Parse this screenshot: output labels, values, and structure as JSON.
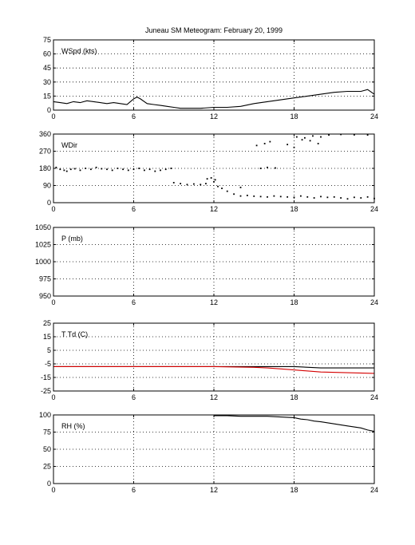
{
  "title": "Juneau SM Meteogram:   February 20, 1999",
  "x_ticks": [
    "0",
    "6",
    "12",
    "18",
    "24"
  ],
  "chart_data": [
    {
      "type": "line",
      "label": "WSpd (kts)",
      "xlim": [
        0,
        24
      ],
      "ylim": [
        0,
        75
      ],
      "y_ticks": [
        0,
        15,
        30,
        45,
        60,
        75
      ],
      "grid": true,
      "series": [
        {
          "color": "#000000",
          "x": [
            0,
            0.5,
            1,
            1.5,
            2,
            2.5,
            3,
            3.5,
            4,
            4.5,
            5,
            5.5,
            6,
            6.25,
            6.5,
            7,
            7.5,
            8,
            8.5,
            9,
            9.5,
            10,
            11,
            12,
            13,
            14,
            15,
            16,
            17,
            18,
            18.5,
            19,
            20,
            21,
            22,
            23,
            23.5,
            24
          ],
          "y": [
            9,
            8,
            7,
            9,
            8,
            10,
            9,
            8,
            7,
            8,
            7,
            6,
            12,
            14,
            12,
            7,
            6,
            5,
            4,
            3,
            2,
            2,
            2,
            3,
            3,
            4,
            7,
            9,
            11,
            13,
            14,
            15,
            17,
            19,
            20,
            20,
            22,
            17
          ]
        }
      ]
    },
    {
      "type": "scatter",
      "label": "WDir",
      "xlim": [
        0,
        24
      ],
      "ylim": [
        0,
        360
      ],
      "y_ticks": [
        0,
        90,
        180,
        270,
        360
      ],
      "grid": true,
      "series": [
        {
          "color": "#000000",
          "x": [
            0.2,
            0.5,
            0.8,
            1.0,
            1.3,
            1.6,
            2.0,
            2.4,
            2.8,
            3.2,
            3.6,
            4.0,
            4.4,
            4.8,
            5.2,
            5.6,
            6.0,
            6.4,
            6.8,
            7.2,
            7.6,
            8.0,
            8.4,
            8.8,
            9.0,
            9.5,
            10.0,
            10.5,
            11.0,
            11.4,
            11.8,
            12.0,
            12.3,
            12.6,
            13.0,
            13.5,
            14.0,
            14.5,
            15.0,
            15.5,
            16.0,
            16.5,
            17.0,
            17.5,
            18.0,
            18.5,
            19.0,
            19.5,
            20.0,
            20.5,
            21.0,
            21.5,
            22.0,
            22.5,
            23.0,
            23.5,
            24.0,
            15.5,
            16.0,
            16.6,
            15.2,
            15.8,
            16.2,
            17.5,
            18.0,
            18.6,
            19.2,
            19.8,
            18.2,
            18.8,
            19.4,
            20.0,
            20.6,
            21.5,
            22.5,
            23.5,
            14.0,
            11.5,
            12.1
          ],
          "y": [
            185,
            175,
            170,
            165,
            175,
            178,
            170,
            180,
            175,
            185,
            178,
            175,
            170,
            180,
            175,
            170,
            175,
            180,
            170,
            175,
            165,
            170,
            175,
            180,
            105,
            100,
            95,
            98,
            95,
            100,
            130,
            110,
            85,
            75,
            60,
            45,
            35,
            38,
            34,
            32,
            30,
            35,
            32,
            30,
            28,
            35,
            30,
            25,
            32,
            28,
            30,
            25,
            20,
            28,
            25,
            30,
            22,
            180,
            185,
            182,
            300,
            310,
            320,
            305,
            290,
            330,
            325,
            310,
            345,
            340,
            350,
            345,
            355,
            358,
            356,
            355,
            80,
            125,
            120
          ]
        }
      ]
    },
    {
      "type": "line",
      "label": "P (mb)",
      "xlim": [
        0,
        24
      ],
      "ylim": [
        950,
        1050
      ],
      "y_ticks": [
        950,
        975,
        1000,
        1025,
        1050
      ],
      "grid": true,
      "series": []
    },
    {
      "type": "line",
      "label": "T Td (C)",
      "xlim": [
        0,
        24
      ],
      "ylim": [
        -25,
        25
      ],
      "y_ticks": [
        -25,
        -15,
        -5,
        5,
        15,
        25
      ],
      "grid": true,
      "series": [
        {
          "color": "#000000",
          "x": [
            0,
            3,
            6,
            9,
            12,
            15,
            16,
            18,
            20,
            22,
            24
          ],
          "y": [
            -7,
            -7,
            -7,
            -7,
            -7,
            -7,
            -7,
            -7,
            -8,
            -8,
            -8
          ]
        },
        {
          "color": "#d40000",
          "x": [
            0,
            3,
            6,
            9,
            12,
            15,
            16,
            18,
            20,
            22,
            24
          ],
          "y": [
            -7,
            -7,
            -7,
            -7,
            -7,
            -7.5,
            -8,
            -9.5,
            -11,
            -11.5,
            -12
          ]
        }
      ]
    },
    {
      "type": "line",
      "label": "RH (%)",
      "xlim": [
        0,
        24
      ],
      "ylim": [
        0,
        100
      ],
      "y_ticks": [
        0,
        25,
        50,
        75,
        100
      ],
      "grid": true,
      "series": [
        {
          "color": "#000000",
          "x": [
            12,
            13,
            14,
            15,
            16,
            17,
            18,
            18.5,
            19,
            19.5,
            20,
            21,
            22,
            23,
            23.5,
            24
          ],
          "y": [
            99,
            99,
            98,
            98,
            98,
            97,
            96,
            94,
            93,
            91,
            90,
            87,
            84,
            81,
            78,
            76
          ]
        }
      ]
    }
  ]
}
